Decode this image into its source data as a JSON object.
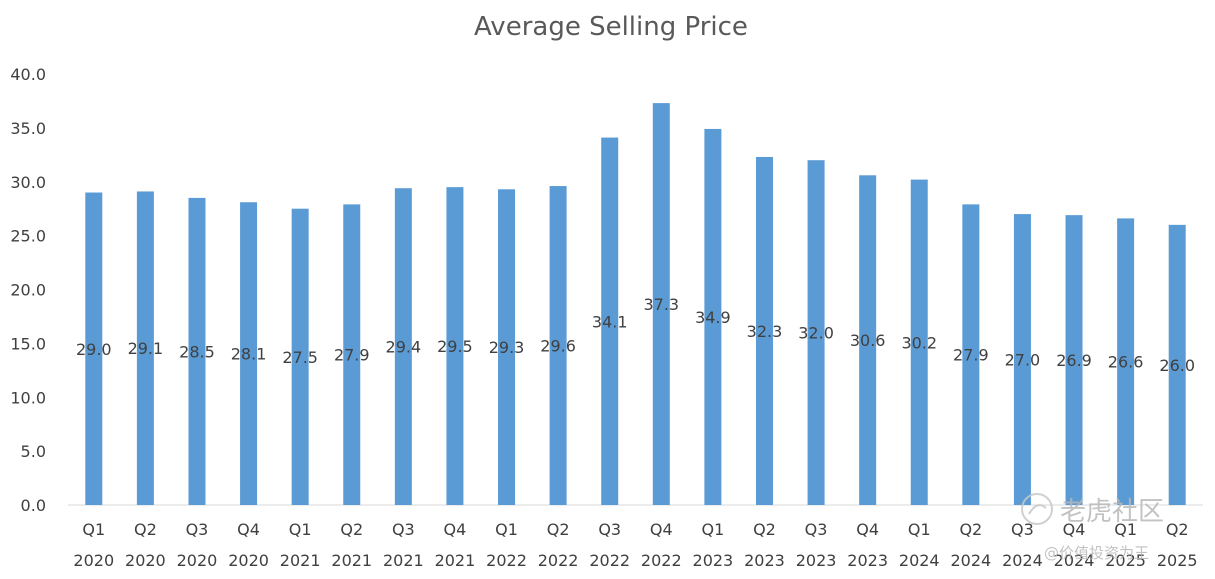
{
  "chart_data": {
    "type": "bar",
    "title": "Average Selling Price",
    "xlabel": "",
    "ylabel": "",
    "ylim": [
      0,
      40
    ],
    "yticks": [
      "0.0",
      "5.0",
      "10.0",
      "15.0",
      "20.0",
      "25.0",
      "30.0",
      "35.0",
      "40.0"
    ],
    "categories": [
      [
        "Q1",
        "2020"
      ],
      [
        "Q2",
        "2020"
      ],
      [
        "Q3",
        "2020"
      ],
      [
        "Q4",
        "2020"
      ],
      [
        "Q1",
        "2021"
      ],
      [
        "Q2",
        "2021"
      ],
      [
        "Q3",
        "2021"
      ],
      [
        "Q4",
        "2021"
      ],
      [
        "Q1",
        "2022"
      ],
      [
        "Q2",
        "2022"
      ],
      [
        "Q3",
        "2022"
      ],
      [
        "Q4",
        "2022"
      ],
      [
        "Q1",
        "2023"
      ],
      [
        "Q2",
        "2023"
      ],
      [
        "Q3",
        "2023"
      ],
      [
        "Q4",
        "2023"
      ],
      [
        "Q1",
        "2024"
      ],
      [
        "Q2",
        "2024"
      ],
      [
        "Q3",
        "2024"
      ],
      [
        "Q4",
        "2024"
      ],
      [
        "Q1",
        "2025"
      ],
      [
        "Q2",
        "2025"
      ]
    ],
    "values": [
      29.0,
      29.1,
      28.5,
      28.1,
      27.5,
      27.9,
      29.4,
      29.5,
      29.3,
      29.6,
      34.1,
      37.3,
      34.9,
      32.3,
      32.0,
      30.6,
      30.2,
      27.9,
      27.0,
      26.9,
      26.6,
      26.0
    ],
    "data_labels": [
      "29.0",
      "29.1",
      "28.5",
      "28.1",
      "27.5",
      "27.9",
      "29.4",
      "29.5",
      "29.3",
      "29.6",
      "34.1",
      "37.3",
      "34.9",
      "32.3",
      "32.0",
      "30.6",
      "30.2",
      "27.9",
      "27.0",
      "26.9",
      "26.6",
      "26.0"
    ],
    "data_label_position": "center",
    "grid": false,
    "legend": "none",
    "bar_color": "#5b9bd5"
  },
  "watermark": {
    "brand": "老虎社区",
    "tagline": "@价值投资为王"
  }
}
